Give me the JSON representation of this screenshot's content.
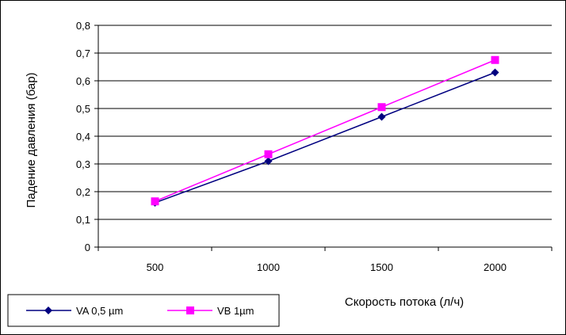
{
  "chart_data": {
    "type": "line",
    "xlabel": "Скорость потока (л/ч)",
    "ylabel": "Падение давления (бар)",
    "categories": [
      "500",
      "1000",
      "1500",
      "2000"
    ],
    "ylim": [
      0,
      0.8
    ],
    "yticks": [
      "0",
      "0,1",
      "0,2",
      "0,3",
      "0,4",
      "0,5",
      "0,6",
      "0,7",
      "0,8"
    ],
    "grid": true,
    "legend_position": "bottom-left",
    "series": [
      {
        "name": "VA 0,5 µm",
        "values": [
          0.16,
          0.31,
          0.47,
          0.63
        ],
        "color": "#000080",
        "marker": "diamond"
      },
      {
        "name": "VB 1µm",
        "values": [
          0.165,
          0.335,
          0.505,
          0.675
        ],
        "color": "#ff00ff",
        "marker": "square"
      }
    ]
  }
}
